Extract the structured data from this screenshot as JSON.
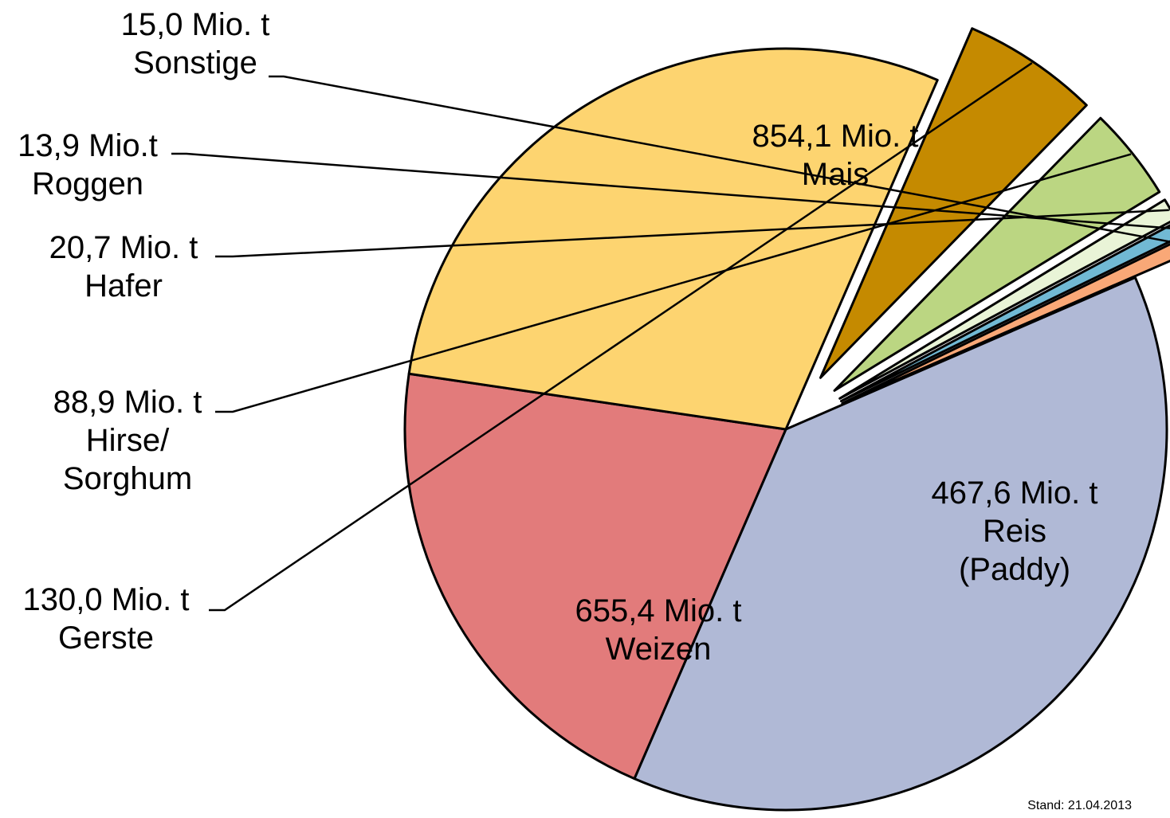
{
  "chart_data": {
    "type": "pie",
    "categories": [
      "Mais",
      "Reis (Paddy)",
      "Weizen",
      "Gerste",
      "Hirse/ Sorghum",
      "Hafer",
      "Roggen",
      "Sonstige"
    ],
    "values": [
      854.1,
      467.6,
      655.4,
      130.0,
      88.9,
      20.7,
      13.9,
      15.0
    ],
    "unit": "Mio. t",
    "slices": [
      {
        "name": "Mais",
        "value": 854.1,
        "value_label": "854,1 Mio. t",
        "label_lines": [
          "Mais"
        ],
        "color": "#B0B9D6",
        "exploded": false
      },
      {
        "name": "Reis (Paddy)",
        "value": 467.6,
        "value_label": "467,6 Mio. t",
        "label_lines": [
          "Reis",
          "(Paddy)"
        ],
        "color": "#E27B7B",
        "exploded": false
      },
      {
        "name": "Weizen",
        "value": 655.4,
        "value_label": "655,4 Mio. t",
        "label_lines": [
          "Weizen"
        ],
        "color": "#FDD470",
        "exploded": false
      },
      {
        "name": "Gerste",
        "value": 130.0,
        "value_label": "130,0 Mio. t",
        "label_lines": [
          "Gerste"
        ],
        "color": "#C58A00",
        "exploded": true
      },
      {
        "name": "Hirse/ Sorghum",
        "value": 88.9,
        "value_label": "88,9 Mio. t",
        "label_lines": [
          "Hirse/",
          "Sorghum"
        ],
        "color": "#BBD682",
        "exploded": true
      },
      {
        "name": "Hafer",
        "value": 20.7,
        "value_label": "20,7 Mio. t",
        "label_lines": [
          "Hafer"
        ],
        "color": "#E9F4D7",
        "exploded": true
      },
      {
        "name": "Roggen",
        "value": 13.9,
        "value_label": "13,9 Mio.t",
        "label_lines": [
          "Roggen"
        ],
        "color": "#71B9D4",
        "exploded": true
      },
      {
        "name": "Sonstige",
        "value": 15.0,
        "value_label": "15,0 Mio. t",
        "label_lines": [
          "Sonstige"
        ],
        "color": "#F9A877",
        "exploded": true
      }
    ],
    "footnote": "Stand: 21.04.2013"
  }
}
